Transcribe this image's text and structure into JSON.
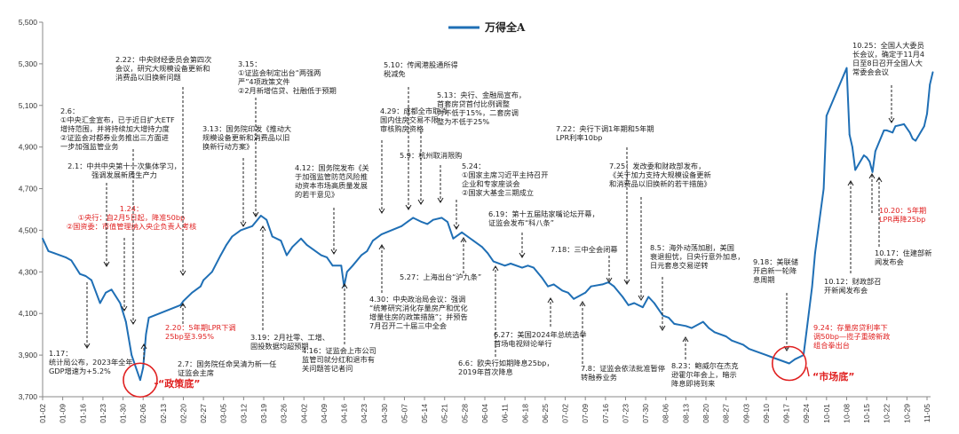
{
  "chart_data": {
    "type": "line",
    "series": [
      {
        "name": "万得全A",
        "color": "#1f6fb5"
      }
    ],
    "ylim": [
      3700,
      5500
    ],
    "yticks": [
      "3,700",
      "3,900",
      "4,100",
      "4,300",
      "4,500",
      "4,700",
      "4,900",
      "5,100",
      "5,300",
      "5,500"
    ],
    "ytick_values": [
      3700,
      3900,
      4100,
      4300,
      4500,
      4700,
      4900,
      5100,
      5300,
      5500
    ],
    "xticks": [
      "01-02",
      "01-09",
      "01-16",
      "01-23",
      "01-30",
      "02-06",
      "02-13",
      "02-20",
      "02-27",
      "03-05",
      "03-12",
      "03-19",
      "03-26",
      "04-02",
      "04-09",
      "04-16",
      "04-23",
      "04-30",
      "05-07",
      "05-14",
      "05-21",
      "05-28",
      "06-04",
      "06-11",
      "06-18",
      "06-25",
      "07-02",
      "07-09",
      "07-16",
      "07-23",
      "07-30",
      "08-06",
      "08-13",
      "08-20",
      "08-27",
      "09-03",
      "09-10",
      "09-17",
      "09-24",
      "10-01",
      "10-08",
      "10-15",
      "10-22",
      "10-29",
      "11-05"
    ],
    "points": [
      [
        "01-02",
        4460
      ],
      [
        "01-04",
        4400
      ],
      [
        "01-06",
        4390
      ],
      [
        "01-08",
        4380
      ],
      [
        "01-10",
        4370
      ],
      [
        "01-12",
        4355
      ],
      [
        "01-15",
        4290
      ],
      [
        "01-17",
        4280
      ],
      [
        "01-19",
        4260
      ],
      [
        "01-22",
        4150
      ],
      [
        "01-24",
        4200
      ],
      [
        "01-26",
        4215
      ],
      [
        "01-29",
        4150
      ],
      [
        "01-31",
        4060
      ],
      [
        "02-02",
        3900
      ],
      [
        "02-05",
        3780
      ],
      [
        "02-06",
        3840
      ],
      [
        "02-07",
        4000
      ],
      [
        "02-08",
        4080
      ],
      [
        "02-19",
        4140
      ],
      [
        "02-20",
        4160
      ],
      [
        "02-23",
        4200
      ],
      [
        "02-26",
        4230
      ],
      [
        "02-27",
        4260
      ],
      [
        "03-01",
        4300
      ],
      [
        "03-04",
        4380
      ],
      [
        "03-06",
        4430
      ],
      [
        "03-08",
        4470
      ],
      [
        "03-11",
        4500
      ],
      [
        "03-13",
        4510
      ],
      [
        "03-15",
        4520
      ],
      [
        "03-18",
        4570
      ],
      [
        "03-20",
        4550
      ],
      [
        "03-22",
        4470
      ],
      [
        "03-25",
        4450
      ],
      [
        "03-27",
        4380
      ],
      [
        "03-29",
        4420
      ],
      [
        "04-01",
        4460
      ],
      [
        "04-03",
        4430
      ],
      [
        "04-08",
        4380
      ],
      [
        "04-10",
        4370
      ],
      [
        "04-12",
        4330
      ],
      [
        "04-15",
        4330
      ],
      [
        "04-16",
        4230
      ],
      [
        "04-17",
        4300
      ],
      [
        "04-19",
        4330
      ],
      [
        "04-22",
        4380
      ],
      [
        "04-24",
        4400
      ],
      [
        "04-26",
        4450
      ],
      [
        "04-29",
        4480
      ],
      [
        "05-06",
        4520
      ],
      [
        "05-08",
        4540
      ],
      [
        "05-10",
        4560
      ],
      [
        "05-13",
        4540
      ],
      [
        "05-15",
        4530
      ],
      [
        "05-17",
        4550
      ],
      [
        "05-20",
        4560
      ],
      [
        "05-22",
        4540
      ],
      [
        "05-24",
        4460
      ],
      [
        "05-27",
        4490
      ],
      [
        "05-29",
        4470
      ],
      [
        "05-31",
        4450
      ],
      [
        "06-03",
        4420
      ],
      [
        "06-05",
        4390
      ],
      [
        "06-07",
        4350
      ],
      [
        "06-11",
        4330
      ],
      [
        "06-13",
        4340
      ],
      [
        "06-17",
        4320
      ],
      [
        "06-19",
        4330
      ],
      [
        "06-21",
        4320
      ],
      [
        "06-24",
        4270
      ],
      [
        "06-26",
        4230
      ],
      [
        "06-28",
        4240
      ],
      [
        "07-01",
        4210
      ],
      [
        "07-03",
        4200
      ],
      [
        "07-05",
        4170
      ],
      [
        "07-09",
        4200
      ],
      [
        "07-11",
        4230
      ],
      [
        "07-15",
        4240
      ],
      [
        "07-17",
        4250
      ],
      [
        "07-19",
        4230
      ],
      [
        "07-22",
        4180
      ],
      [
        "07-24",
        4140
      ],
      [
        "07-26",
        4150
      ],
      [
        "07-29",
        4130
      ],
      [
        "07-31",
        4180
      ],
      [
        "08-02",
        4150
      ],
      [
        "08-05",
        4090
      ],
      [
        "08-07",
        4080
      ],
      [
        "08-09",
        4050
      ],
      [
        "08-13",
        4040
      ],
      [
        "08-15",
        4030
      ],
      [
        "08-19",
        4060
      ],
      [
        "08-21",
        4030
      ],
      [
        "08-23",
        4010
      ],
      [
        "08-27",
        3990
      ],
      [
        "08-29",
        3970
      ],
      [
        "09-02",
        3950
      ],
      [
        "09-04",
        3930
      ],
      [
        "09-06",
        3920
      ],
      [
        "09-10",
        3900
      ],
      [
        "09-12",
        3890
      ],
      [
        "09-18",
        3860
      ],
      [
        "09-20",
        3880
      ],
      [
        "09-23",
        3900
      ],
      [
        "09-24",
        4010
      ],
      [
        "09-26",
        4230
      ],
      [
        "09-27",
        4390
      ],
      [
        "09-30",
        4700
      ],
      [
        "10-01",
        5050
      ],
      [
        "10-08",
        5280
      ],
      [
        "10-09",
        4960
      ],
      [
        "10-10",
        4900
      ],
      [
        "10-11",
        4790
      ],
      [
        "10-14",
        4860
      ],
      [
        "10-15",
        4850
      ],
      [
        "10-16",
        4830
      ],
      [
        "10-17",
        4780
      ],
      [
        "10-18",
        4880
      ],
      [
        "10-21",
        4980
      ],
      [
        "10-22",
        4980
      ],
      [
        "10-24",
        4970
      ],
      [
        "10-25",
        5000
      ],
      [
        "10-28",
        5010
      ],
      [
        "10-30",
        4970
      ],
      [
        "10-31",
        4940
      ],
      [
        "11-01",
        4930
      ],
      [
        "11-04",
        5000
      ],
      [
        "11-05",
        5060
      ],
      [
        "11-06",
        5200
      ],
      [
        "11-07",
        5260
      ]
    ],
    "annotations": [
      {
        "id": "a117",
        "lines": [
          "1.17：",
          "统计局公布，2023年全年",
          "GDP增速为+5.2%"
        ],
        "color": "#222222"
      },
      {
        "id": "a124",
        "lines": [
          "1.24：",
          "①央行：自2月5日起，降准50bp",
          "②国资委：市值管理纳入央企负责人考核"
        ],
        "color": "#e02020"
      },
      {
        "id": "a21",
        "lines": [
          "2.1：中共中央第十一次集体学习，",
          "强调发展新质生产力"
        ],
        "color": "#222222"
      },
      {
        "id": "a26",
        "lines": [
          "2.6：",
          "①中央汇金宣布，已于近日扩大ETF",
          "增持范围，并将持续加大增持力度",
          "②证监会对都券业务推出三方面进",
          "一步加强监管业务"
        ],
        "color": "#222222"
      },
      {
        "id": "a222",
        "lines": [
          "2.22：中央财经委员会第四次",
          "会议，研究大规模设备更新和",
          "消费品以旧换新问题"
        ],
        "color": "#222222"
      },
      {
        "id": "a27",
        "lines": [
          "2.7：国务院任命吴清为新一任",
          "证监会主席"
        ],
        "color": "#222222"
      },
      {
        "id": "a220",
        "lines": [
          "2.20：5年期LPR下调",
          "25bp至3.95%"
        ],
        "color": "#e02020"
      },
      {
        "id": "a315",
        "lines": [
          "3.15：",
          "①证监会制定出台“两强两",
          "严”4项政策文件",
          "②2月新增信贷、社融低于预期"
        ],
        "color": "#222222"
      },
      {
        "id": "a313",
        "lines": [
          "3.13：国务院印发《推动大",
          "规模设备更新和消费品以旧",
          "换新行动方案》"
        ],
        "color": "#222222"
      },
      {
        "id": "a319",
        "lines": [
          "3.19：2月社零、工增、",
          "固投数据均超预期"
        ],
        "color": "#222222"
      },
      {
        "id": "a412",
        "lines": [
          "4.12：国务院发布《关",
          "于加强监管防范风险推",
          "动资本市场高质量发展",
          "的若干意见》"
        ],
        "color": "#222222"
      },
      {
        "id": "a416",
        "lines": [
          "4.16：证监会上市公司",
          "监管司就分红和退市有",
          "关问题答记者问"
        ],
        "color": "#222222"
      },
      {
        "id": "a429",
        "lines": [
          "4.29：成都全市取消",
          "国内住房交易不限",
          "审核购房资格"
        ],
        "color": "#222222"
      },
      {
        "id": "a430",
        "lines": [
          "4.30：中央政治局会议：强调",
          "“统筹研究消化存量房产和优化",
          "增量住房的政策措施”；并预告",
          "7月召开二十届三中全会"
        ],
        "color": "#222222"
      },
      {
        "id": "a510",
        "lines": [
          "5.10：传闻港股通所得",
          "税减免"
        ],
        "color": "#222222"
      },
      {
        "id": "a513",
        "lines": [
          "5.13：央行、金融局宣布，",
          "首套房贷首付比例调整",
          "为不低于15%，二套房调",
          "整为不低于25%"
        ],
        "color": "#222222"
      },
      {
        "id": "a59",
        "lines": [
          "5.9：杭州取消限购"
        ],
        "color": "#222222"
      },
      {
        "id": "a524",
        "lines": [
          "5.24：",
          "①国家主席习近平主持召开",
          "企业和专家座谈会",
          "②国家大基金三期成立"
        ],
        "color": "#222222"
      },
      {
        "id": "a527",
        "lines": [
          "5.27：上海出台“沪九条”"
        ],
        "color": "#222222"
      },
      {
        "id": "a619",
        "lines": [
          "6.19：第十五届陆家嘴论坛开幕，",
          "证监会发布“科八条”"
        ],
        "color": "#222222"
      },
      {
        "id": "a627",
        "lines": [
          "6.27：美国2024年总统选举",
          "首场电视辩论举行"
        ],
        "color": "#222222"
      },
      {
        "id": "a66",
        "lines": [
          "6.6：欧央行如期降息25bp，",
          "2019年首次降息"
        ],
        "color": "#222222"
      },
      {
        "id": "a718",
        "lines": [
          "7.18：三中全会闭幕"
        ],
        "color": "#222222"
      },
      {
        "id": "a722",
        "lines": [
          "7.22：央行下调1年期和5年期",
          "LPR利率10bp"
        ],
        "color": "#222222"
      },
      {
        "id": "a725",
        "lines": [
          "7.25：发改委和财政部发布，",
          "《关于加力支持大规模设备更新",
          "和消费品以旧换新的若干措施》"
        ],
        "color": "#222222"
      },
      {
        "id": "a78",
        "lines": [
          "7.8：证监会依法批准暂停",
          "转融券业务"
        ],
        "color": "#222222"
      },
      {
        "id": "a85",
        "lines": [
          "8.5：海外动荡加剧，美国",
          "衰退担忧，日央行意外加息，",
          "日元套息交易逆转"
        ],
        "color": "#222222"
      },
      {
        "id": "a823",
        "lines": [
          "8.23：鲍威尔在杰克",
          "逊霍尔年会上，暗示",
          "降息即将到来"
        ],
        "color": "#222222"
      },
      {
        "id": "a918",
        "lines": [
          "9.18：美联储",
          "开启新一轮降",
          "息周期"
        ],
        "color": "#222222"
      },
      {
        "id": "a924",
        "lines": [
          "9.24：存量房贷利率下",
          "调50bp—揽子重磅新政",
          "组合拳出台"
        ],
        "color": "#e02020"
      },
      {
        "id": "a1012",
        "lines": [
          "10.12：财政部召",
          "开新闻发布会"
        ],
        "color": "#222222"
      },
      {
        "id": "a1017",
        "lines": [
          "10.17：住建部新",
          "闻发布会"
        ],
        "color": "#222222"
      },
      {
        "id": "a1020",
        "lines": [
          "10.20：5年期",
          "LPR再降25bp"
        ],
        "color": "#e02020"
      },
      {
        "id": "a1025",
        "lines": [
          "10.25：全国人大委员",
          "长会议，确定于11月4",
          "日至8日召开全国人大",
          "常委会会议"
        ],
        "color": "#222222"
      }
    ],
    "callouts": [
      {
        "id": "policy",
        "text": "“政策底”",
        "date": "02-05",
        "value": 3780
      },
      {
        "id": "market",
        "text": "“市场底”",
        "date": "09-18",
        "value": 3860
      }
    ]
  }
}
